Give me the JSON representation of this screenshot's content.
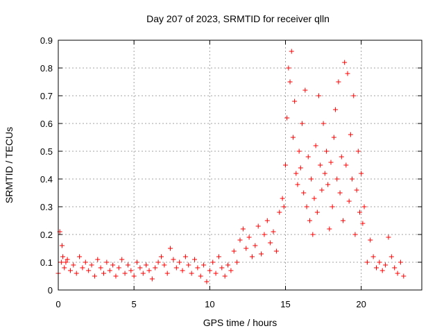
{
  "chart_data": {
    "type": "scatter",
    "title": "Day 207 of 2023, SRMTID for receiver qlln",
    "xlabel": "GPS time / hours",
    "ylabel": "SRMTID / TECUs",
    "xlim": [
      0,
      24
    ],
    "ylim": [
      0,
      0.9
    ],
    "xticks": [
      0,
      5,
      10,
      15,
      20
    ],
    "xtick_labels": [
      "0",
      "5",
      "10",
      "15",
      "20"
    ],
    "yticks": [
      0,
      0.1,
      0.2,
      0.3,
      0.4,
      0.5,
      0.6,
      0.7,
      0.8,
      0.9
    ],
    "ytick_labels": [
      "0",
      "0.1",
      "0.2",
      "0.3",
      "0.4",
      "0.5",
      "0.6",
      "0.7",
      "0.8",
      "0.9"
    ],
    "grid": true,
    "marker": "+",
    "color": "#ff0000",
    "series": [
      {
        "name": "SRMTID",
        "x": [
          0.0,
          0.1,
          0.2,
          0.25,
          0.3,
          0.4,
          0.5,
          0.6,
          0.8,
          1.0,
          1.2,
          1.4,
          1.6,
          1.8,
          2.0,
          2.2,
          2.4,
          2.6,
          2.8,
          3.0,
          3.2,
          3.4,
          3.6,
          3.8,
          4.0,
          4.2,
          4.4,
          4.6,
          4.8,
          5.0,
          5.2,
          5.4,
          5.6,
          5.8,
          6.0,
          6.2,
          6.4,
          6.6,
          6.8,
          7.0,
          7.2,
          7.4,
          7.6,
          7.8,
          8.0,
          8.2,
          8.4,
          8.6,
          8.8,
          9.0,
          9.2,
          9.4,
          9.6,
          9.8,
          10.0,
          10.2,
          10.4,
          10.6,
          10.8,
          11.0,
          11.2,
          11.4,
          11.6,
          11.8,
          12.0,
          12.2,
          12.4,
          12.6,
          12.8,
          13.0,
          13.2,
          13.4,
          13.6,
          13.8,
          14.0,
          14.2,
          14.4,
          14.6,
          14.8,
          14.9,
          15.0,
          15.1,
          15.2,
          15.3,
          15.4,
          15.5,
          15.6,
          15.7,
          15.8,
          15.9,
          16.0,
          16.1,
          16.2,
          16.3,
          16.4,
          16.5,
          16.6,
          16.7,
          16.8,
          16.9,
          17.0,
          17.1,
          17.2,
          17.3,
          17.4,
          17.5,
          17.6,
          17.7,
          17.8,
          17.9,
          18.0,
          18.1,
          18.2,
          18.3,
          18.4,
          18.5,
          18.6,
          18.7,
          18.8,
          18.9,
          19.0,
          19.1,
          19.2,
          19.3,
          19.4,
          19.5,
          19.6,
          19.7,
          19.8,
          19.9,
          20.0,
          20.1,
          20.2,
          20.4,
          20.6,
          20.8,
          21.0,
          21.2,
          21.4,
          21.6,
          21.8,
          22.0,
          22.2,
          22.4,
          22.6,
          22.8
        ],
        "y": [
          0.06,
          0.21,
          0.1,
          0.16,
          0.12,
          0.08,
          0.1,
          0.11,
          0.07,
          0.09,
          0.06,
          0.12,
          0.08,
          0.1,
          0.07,
          0.09,
          0.05,
          0.11,
          0.08,
          0.06,
          0.1,
          0.07,
          0.09,
          0.05,
          0.08,
          0.11,
          0.06,
          0.09,
          0.07,
          0.05,
          0.1,
          0.08,
          0.06,
          0.09,
          0.07,
          0.04,
          0.08,
          0.1,
          0.12,
          0.09,
          0.06,
          0.15,
          0.11,
          0.08,
          0.1,
          0.07,
          0.12,
          0.09,
          0.06,
          0.11,
          0.08,
          0.05,
          0.09,
          0.03,
          0.07,
          0.1,
          0.06,
          0.12,
          0.08,
          0.05,
          0.09,
          0.07,
          0.14,
          0.1,
          0.18,
          0.22,
          0.15,
          0.19,
          0.12,
          0.16,
          0.23,
          0.13,
          0.2,
          0.25,
          0.17,
          0.21,
          0.14,
          0.28,
          0.33,
          0.3,
          0.45,
          0.62,
          0.8,
          0.75,
          0.86,
          0.55,
          0.68,
          0.42,
          0.38,
          0.5,
          0.44,
          0.6,
          0.35,
          0.72,
          0.3,
          0.48,
          0.25,
          0.4,
          0.2,
          0.33,
          0.52,
          0.28,
          0.7,
          0.45,
          0.36,
          0.6,
          0.42,
          0.5,
          0.38,
          0.22,
          0.46,
          0.3,
          0.55,
          0.65,
          0.4,
          0.75,
          0.35,
          0.48,
          0.25,
          0.82,
          0.45,
          0.78,
          0.32,
          0.56,
          0.4,
          0.7,
          0.2,
          0.36,
          0.5,
          0.28,
          0.42,
          0.24,
          0.3,
          0.1,
          0.18,
          0.12,
          0.08,
          0.1,
          0.07,
          0.09,
          0.19,
          0.12,
          0.08,
          0.06,
          0.1,
          0.05
        ]
      }
    ]
  }
}
